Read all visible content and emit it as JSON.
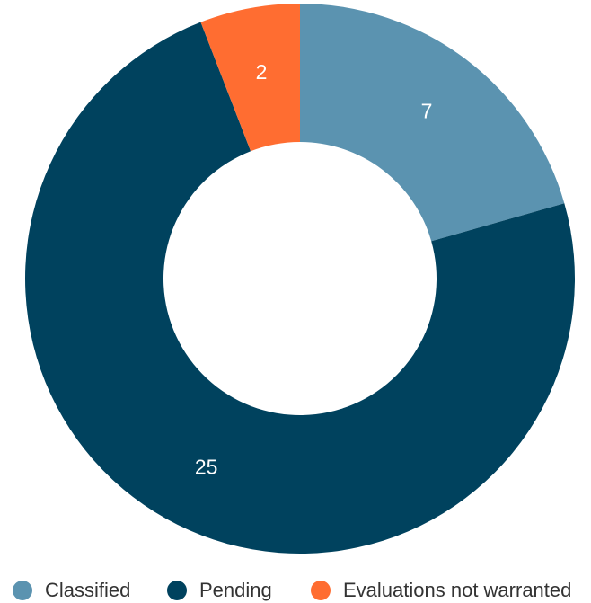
{
  "chart_data": {
    "type": "pie",
    "donut": true,
    "categories": [
      "Classified",
      "Pending",
      "Evaluations not warranted"
    ],
    "values": [
      7,
      25,
      2
    ],
    "colors": [
      "#5b93b0",
      "#00425e",
      "#ff6d31"
    ],
    "data_labels": [
      "7",
      "25",
      "2"
    ],
    "legend_position": "bottom",
    "title": ""
  }
}
